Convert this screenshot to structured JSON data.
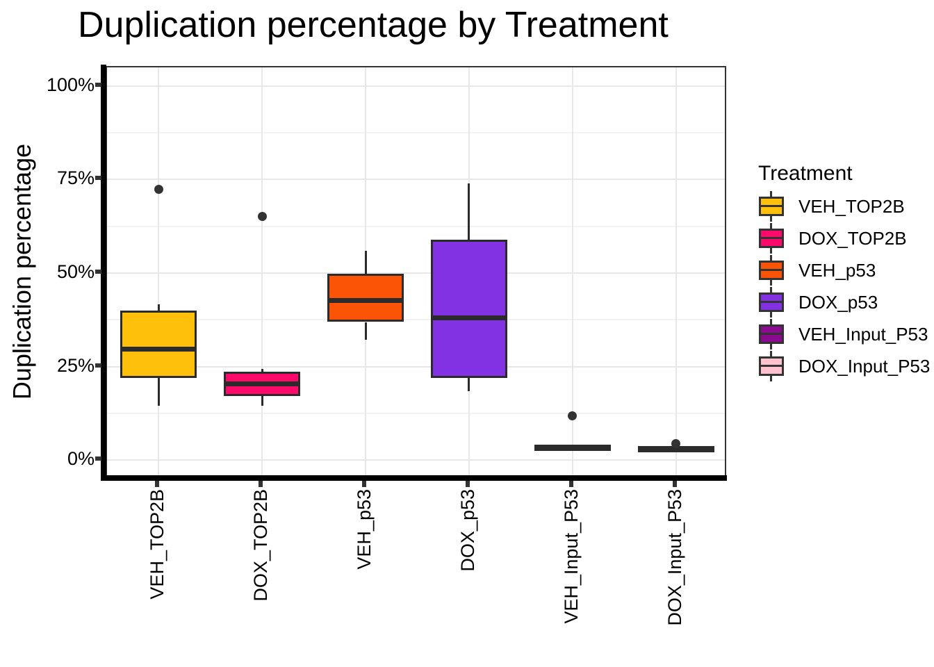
{
  "chart_data": {
    "type": "boxplot",
    "title": "Duplication percentage by Treatment",
    "xlabel": "",
    "ylabel": "Duplication percentage",
    "ylim": [
      0,
      100
    ],
    "y_unit": "%",
    "grid": "major-and-minor-horizontal, major-vertical",
    "legend_position": "right",
    "legend_title": "Treatment",
    "y_ticks": [
      {
        "value": 0,
        "label": "0%"
      },
      {
        "value": 25,
        "label": "25%"
      },
      {
        "value": 50,
        "label": "50%"
      },
      {
        "value": 75,
        "label": "75%"
      },
      {
        "value": 100,
        "label": "100%"
      }
    ],
    "categories": [
      "VEH_TOP2B",
      "DOX_TOP2B",
      "VEH_p53",
      "DOX_p53",
      "VEH_Input_P53",
      "DOX_Input_P53"
    ],
    "series": [
      {
        "name": "VEH_TOP2B",
        "color": "#FFC00C",
        "whisker_low": 14.5,
        "q1": 22.0,
        "median": 29.7,
        "q3": 40.0,
        "whisker_high": 41.7,
        "outliers": [
          72.3
        ]
      },
      {
        "name": "DOX_TOP2B",
        "color": "#FF0A6B",
        "whisker_low": 14.5,
        "q1": 17.2,
        "median": 20.4,
        "q3": 23.7,
        "whisker_high": 24.3,
        "outliers": [
          65.2
        ]
      },
      {
        "name": "VEH_p53",
        "color": "#FB5407",
        "whisker_low": 32.2,
        "q1": 36.9,
        "median": 42.6,
        "q3": 49.8,
        "whisker_high": 55.9,
        "outliers": []
      },
      {
        "name": "DOX_p53",
        "color": "#8232E3",
        "whisker_low": 18.5,
        "q1": 21.9,
        "median": 38.0,
        "q3": 58.9,
        "whisker_high": 73.9,
        "outliers": []
      },
      {
        "name": "VEH_Input_P53",
        "color": "#8A0B90",
        "whisker_low": 2.7,
        "q1": 3.4,
        "median": 3.5,
        "q3": 3.6,
        "whisker_high": 3.6,
        "outliers": [
          11.9
        ]
      },
      {
        "name": "DOX_Input_P53",
        "color": "#FFC2CE",
        "whisker_low": 2.9,
        "q1": 2.9,
        "median": 3.0,
        "q3": 3.1,
        "whisker_high": 3.1,
        "outliers": [
          4.3
        ]
      }
    ]
  }
}
